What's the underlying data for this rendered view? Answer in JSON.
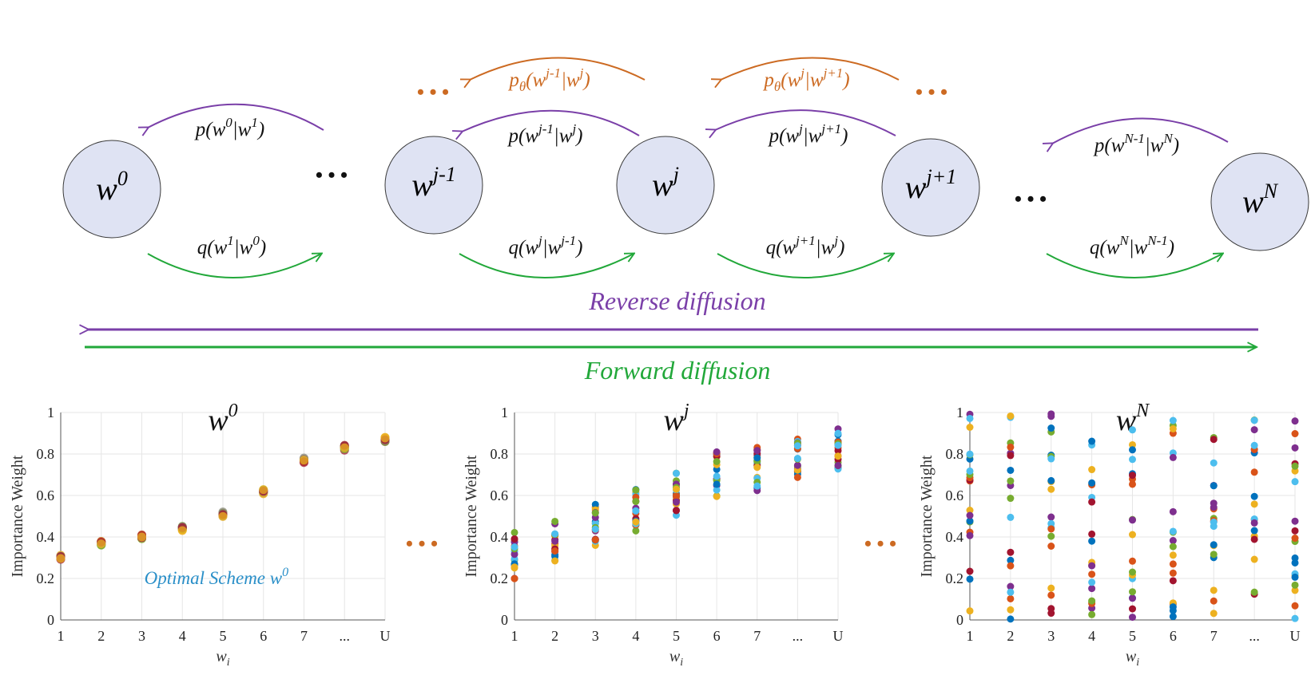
{
  "colors": {
    "purple": "#7a3fa8",
    "green": "#22a83a",
    "orange": "#cc6a22",
    "node_fill": "#dfe3f3",
    "blue_text": "#2a8fc8"
  },
  "nodes": [
    {
      "id": "w0",
      "base": "w",
      "sup": "0"
    },
    {
      "id": "wjm1",
      "base": "w",
      "sup": "j-1"
    },
    {
      "id": "wj",
      "base": "w",
      "sup": "j"
    },
    {
      "id": "wjp1",
      "base": "w",
      "sup": "j+1"
    },
    {
      "id": "wN",
      "base": "w",
      "sup": "N"
    }
  ],
  "ellipsis": "• • •",
  "labels": {
    "p_w0_w1": {
      "a": "p(w",
      "a_sup": "0",
      "b": "|w",
      "b_sup": "1",
      "c": ")"
    },
    "p_wjm1_wj": {
      "a": "p(w",
      "a_sup": "j-1",
      "b": "|w",
      "b_sup": "j",
      "c": ")"
    },
    "p_wj_wjp1": {
      "a": "p(w",
      "a_sup": "j",
      "b": "|w",
      "b_sup": "j+1",
      "c": ")"
    },
    "p_wNm1_wN": {
      "a": "p(w",
      "a_sup": "N-1",
      "b": "|w",
      "b_sup": "N",
      "c": ")"
    },
    "ptheta_1": {
      "a": "p",
      "a_sub": "θ",
      "b": "(w",
      "b_sup": "j-1",
      "c": "|w",
      "c_sup": "j",
      "d": ")"
    },
    "ptheta_2": {
      "a": "p",
      "a_sub": "θ",
      "b": "(w",
      "b_sup": "j",
      "c": "|w",
      "c_sup": "j+1",
      "d": ")"
    },
    "q_w1_w0": {
      "a": "q(w",
      "a_sup": "1",
      "b": "|w",
      "b_sup": "0",
      "c": ")"
    },
    "q_wj_wjm1": {
      "a": "q(w",
      "a_sup": "j",
      "b": "|w",
      "b_sup": "j-1",
      "c": ")"
    },
    "q_wjp1_wj": {
      "a": "q(w",
      "a_sup": "j+1",
      "b": "|w",
      "b_sup": "j",
      "c": ")"
    },
    "q_wN_wNm1": {
      "a": "q(w",
      "a_sup": "N",
      "b": "|w",
      "b_sup": "N-1",
      "c": ")"
    }
  },
  "reverse_label": "Reverse diffusion",
  "forward_label": "Forward diffusion",
  "chart_data": [
    {
      "type": "scatter",
      "title": "w",
      "title_sup": "0",
      "xlabel": "w",
      "xlabel_sub": "i",
      "ylabel": "Importance Weight",
      "categories": [
        "1",
        "2",
        "3",
        "4",
        "5",
        "6",
        "7",
        "...",
        "U"
      ],
      "ylim": [
        0,
        1
      ],
      "yticks": [
        "0",
        "0.2",
        "0.4",
        "0.6",
        "0.8",
        "1"
      ],
      "annotation": "Optimal Scheme w",
      "annotation_sup": "0",
      "grid": true,
      "centers": [
        0.3,
        0.37,
        0.4,
        0.44,
        0.51,
        0.62,
        0.77,
        0.83,
        0.87
      ],
      "spread": 0.012
    },
    {
      "type": "scatter",
      "title": "w",
      "title_sup": "j",
      "xlabel": "w",
      "xlabel_sub": "i",
      "ylabel": "Importance Weight",
      "categories": [
        "1",
        "2",
        "3",
        "4",
        "5",
        "6",
        "7",
        "...",
        "U"
      ],
      "ylim": [
        0,
        1
      ],
      "yticks": [
        "0",
        "0.2",
        "0.4",
        "0.6",
        "0.8",
        "1"
      ],
      "grid": true,
      "centers": [
        0.31,
        0.37,
        0.47,
        0.52,
        0.61,
        0.7,
        0.73,
        0.78,
        0.83
      ],
      "spread": 0.07
    },
    {
      "type": "scatter",
      "title": "w",
      "title_sup": "N",
      "xlabel": "w",
      "xlabel_sub": "i",
      "ylabel": "Importance Weight",
      "categories": [
        "1",
        "2",
        "3",
        "4",
        "5",
        "6",
        "7",
        "...",
        "U"
      ],
      "ylim": [
        0,
        1
      ],
      "yticks": [
        "0",
        "0.2",
        "0.4",
        "0.6",
        "0.8",
        "1"
      ],
      "grid": true,
      "centers": [
        0.5,
        0.5,
        0.5,
        0.5,
        0.5,
        0.5,
        0.5,
        0.5,
        0.5
      ],
      "spread": 0.5
    }
  ]
}
